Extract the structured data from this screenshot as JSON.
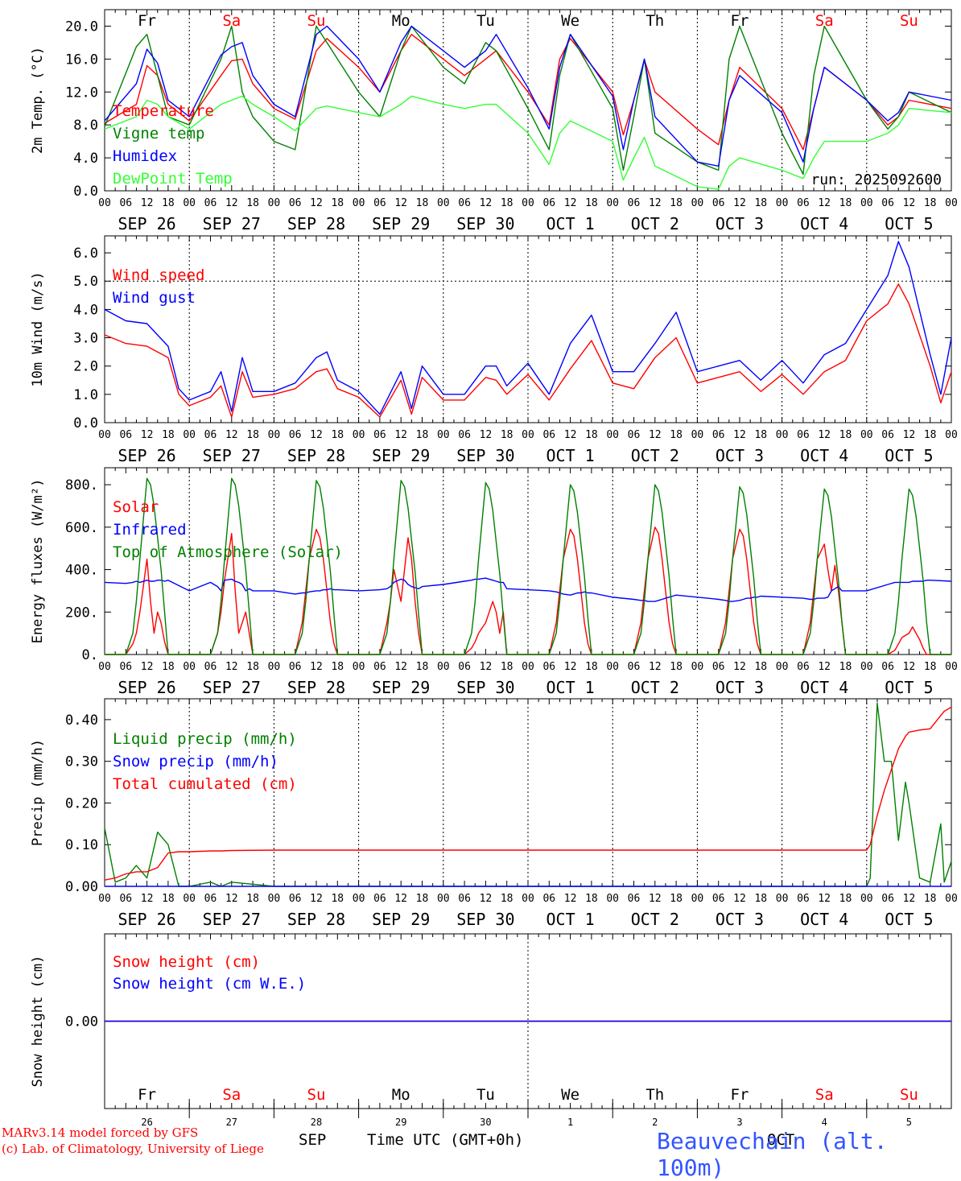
{
  "footer": {
    "model_line": "MARv3.14 model forced by GFS",
    "credit_line": "(c) Lab. of Climatology, University of Liege",
    "xlabel": "Time UTC (GMT+0h)",
    "month_left": "SEP",
    "month_right": "OCT",
    "station": "Beauvechain (alt. 100m)"
  },
  "axis": {
    "hour_labels": [
      "00",
      "06",
      "12",
      "18"
    ],
    "final_hour_label": "00",
    "dates": [
      "SEP 26",
      "SEP 27",
      "SEP 28",
      "SEP 29",
      "SEP 30",
      "OCT  1",
      "OCT  2",
      "OCT  3",
      "OCT  4",
      "OCT  5"
    ],
    "weekdays": [
      "Fr",
      "Sa",
      "Su",
      "Mo",
      "Tu",
      "We",
      "Th",
      "Fr",
      "Sa",
      "Su"
    ],
    "weekend": [
      false,
      true,
      true,
      false,
      false,
      false,
      false,
      false,
      true,
      true
    ],
    "day_numbers": [
      "26",
      "27",
      "28",
      "29",
      "30",
      "1",
      "2",
      "3",
      "4",
      "5"
    ],
    "start_hour_offset": 0,
    "total_hours": 240
  },
  "colors": {
    "red": "#ff0000",
    "dark_green": "#008000",
    "blue": "#0000ff",
    "light_green": "#33ff33",
    "station_blue": "#3355ff"
  },
  "chart_data": [
    {
      "type": "line",
      "ylabel": "2m Temp. (°C)",
      "yticks": [
        "0.0",
        "4.0",
        "8.0",
        "12.0",
        "16.0",
        "20.0"
      ],
      "ylim": [
        0,
        22
      ],
      "run_label": "run: 2025092600",
      "hline": null,
      "x_hours": [
        0,
        9,
        12,
        15,
        18,
        24,
        33,
        36,
        39,
        42,
        48,
        54,
        60,
        63,
        72,
        78,
        84,
        87,
        96,
        102,
        108,
        111,
        120,
        126,
        129,
        132,
        144,
        147,
        150,
        153,
        156,
        168,
        174,
        177,
        180,
        192,
        198,
        201,
        204,
        216,
        222,
        225,
        228,
        240
      ],
      "series": [
        {
          "name": "Temperature",
          "color": "#ff0000",
          "values": [
            8.2,
            10.5,
            15.2,
            14.0,
            10.5,
            8.5,
            14.0,
            15.8,
            16.0,
            13.0,
            10.0,
            8.7,
            17.0,
            18.5,
            15.0,
            12.0,
            17.0,
            19.0,
            16.0,
            14.0,
            16.0,
            17.0,
            12.0,
            8.0,
            16.0,
            18.5,
            12.0,
            6.8,
            11.0,
            15.9,
            12.0,
            7.5,
            5.6,
            11.0,
            15.0,
            10.0,
            5.0,
            10.0,
            15.0,
            11.0,
            8.0,
            9.0,
            11.0,
            10.0
          ]
        },
        {
          "name": "Vigne temp",
          "color": "#008000",
          "values": [
            7.8,
            17.5,
            19.0,
            14.0,
            9.0,
            8.0,
            16.0,
            20.0,
            12.0,
            9.0,
            6.0,
            5.0,
            20.0,
            18.0,
            12.0,
            9.0,
            17.0,
            20.0,
            15.0,
            13.0,
            18.0,
            17.0,
            10.0,
            5.0,
            14.0,
            19.0,
            10.0,
            2.5,
            9.0,
            16.0,
            7.0,
            3.5,
            2.5,
            16.0,
            20.0,
            7.0,
            2.0,
            14.0,
            20.0,
            11.0,
            7.5,
            9.0,
            12.0,
            9.5
          ]
        },
        {
          "name": "Humidex",
          "color": "#0000ff",
          "values": [
            8.5,
            13.0,
            17.2,
            15.5,
            11.0,
            9.0,
            16.5,
            17.5,
            18.0,
            14.0,
            10.5,
            9.0,
            19.0,
            20.0,
            16.0,
            12.0,
            18.0,
            20.0,
            17.0,
            15.0,
            17.0,
            19.0,
            12.5,
            7.5,
            15.0,
            19.0,
            11.5,
            5.0,
            11.0,
            16.0,
            9.0,
            3.5,
            3.0,
            11.0,
            14.0,
            9.5,
            3.5,
            10.0,
            15.0,
            11.0,
            8.5,
            9.5,
            12.0,
            11.0
          ]
        },
        {
          "name": "DewPoint Temp",
          "color": "#33ff33",
          "values": [
            7.5,
            9.0,
            11.0,
            10.5,
            9.0,
            7.5,
            10.5,
            11.0,
            11.5,
            10.5,
            9.0,
            7.3,
            10.0,
            10.3,
            9.5,
            9.0,
            10.5,
            11.5,
            10.5,
            10.0,
            10.5,
            10.5,
            7.0,
            3.2,
            7.0,
            8.5,
            6.0,
            1.3,
            4.0,
            6.5,
            3.0,
            0.5,
            0.2,
            3.0,
            4.0,
            2.5,
            1.5,
            4.0,
            6.0,
            6.0,
            7.0,
            8.0,
            10.0,
            9.5
          ]
        }
      ]
    },
    {
      "type": "line",
      "ylabel": "10m Wind (m/s)",
      "yticks": [
        "0.0",
        "1.0",
        "2.0",
        "3.0",
        "4.0",
        "5.0",
        "6.0"
      ],
      "ylim": [
        0,
        6.6
      ],
      "hline": 5.0,
      "x_hours": [
        0,
        6,
        12,
        18,
        21,
        24,
        30,
        33,
        36,
        39,
        42,
        48,
        54,
        60,
        63,
        66,
        72,
        78,
        84,
        87,
        90,
        96,
        102,
        108,
        111,
        114,
        120,
        126,
        132,
        138,
        144,
        150,
        156,
        162,
        168,
        174,
        180,
        186,
        192,
        198,
        204,
        210,
        216,
        222,
        225,
        228,
        234,
        237,
        240
      ],
      "series": [
        {
          "name": "Wind speed",
          "color": "#ff0000",
          "values": [
            3.1,
            2.8,
            2.7,
            2.3,
            1.0,
            0.6,
            0.9,
            1.3,
            0.2,
            1.8,
            0.9,
            1.0,
            1.2,
            1.8,
            1.9,
            1.2,
            0.9,
            0.2,
            1.5,
            0.3,
            1.6,
            0.8,
            0.8,
            1.6,
            1.5,
            1.0,
            1.7,
            0.8,
            1.9,
            2.9,
            1.4,
            1.2,
            2.3,
            3.0,
            1.4,
            1.6,
            1.8,
            1.1,
            1.7,
            1.0,
            1.8,
            2.2,
            3.6,
            4.2,
            4.9,
            4.2,
            2.0,
            0.7,
            1.8
          ]
        },
        {
          "name": "Wind gust",
          "color": "#0000ff",
          "values": [
            4.0,
            3.6,
            3.5,
            2.7,
            1.2,
            0.8,
            1.1,
            1.8,
            0.4,
            2.3,
            1.1,
            1.1,
            1.4,
            2.3,
            2.5,
            1.5,
            1.1,
            0.3,
            1.8,
            0.5,
            2.0,
            1.0,
            1.0,
            2.0,
            2.0,
            1.3,
            2.1,
            1.0,
            2.8,
            3.8,
            1.8,
            1.8,
            2.8,
            3.9,
            1.8,
            2.0,
            2.2,
            1.5,
            2.2,
            1.4,
            2.4,
            2.8,
            4.0,
            5.2,
            6.4,
            5.5,
            2.4,
            1.0,
            3.0
          ]
        }
      ]
    },
    {
      "type": "line",
      "ylabel": "Energy fluxes (W/m²)",
      "yticks": [
        "0.",
        "200.",
        "400.",
        "600.",
        "800."
      ],
      "ylim": [
        0,
        880
      ],
      "hline": null,
      "x_hours": [
        0,
        6,
        8,
        9,
        10,
        12,
        13,
        14,
        15,
        16,
        17,
        18,
        24,
        30,
        32,
        33,
        34,
        36,
        37,
        38,
        39,
        40,
        41,
        42,
        48,
        54,
        56,
        57,
        58,
        60,
        61,
        62,
        63,
        64,
        65,
        66,
        72,
        78,
        80,
        81,
        82,
        84,
        85,
        86,
        87,
        88,
        89,
        90,
        96,
        102,
        104,
        105,
        106,
        108,
        109,
        110,
        111,
        112,
        113,
        114,
        120,
        126,
        128,
        129,
        130,
        132,
        133,
        134,
        135,
        136,
        137,
        138,
        144,
        150,
        152,
        153,
        154,
        156,
        157,
        158,
        159,
        160,
        161,
        162,
        168,
        174,
        176,
        177,
        178,
        180,
        181,
        182,
        183,
        184,
        185,
        186,
        192,
        198,
        200,
        201,
        202,
        204,
        205,
        206,
        207,
        208,
        209,
        210,
        216,
        222,
        224,
        225,
        226,
        228,
        229,
        230,
        231,
        232,
        233,
        234,
        240
      ],
      "series": [
        {
          "name": "Solar",
          "color": "#ff0000",
          "values": [
            0,
            0,
            50,
            100,
            200,
            450,
            250,
            100,
            200,
            150,
            60,
            0,
            0,
            0,
            100,
            200,
            350,
            570,
            300,
            100,
            150,
            200,
            100,
            0,
            0,
            0,
            150,
            300,
            450,
            590,
            550,
            450,
            300,
            150,
            50,
            0,
            0,
            0,
            150,
            250,
            400,
            250,
            400,
            550,
            450,
            250,
            100,
            0,
            0,
            0,
            30,
            60,
            100,
            150,
            200,
            250,
            200,
            100,
            200,
            0,
            0,
            0,
            150,
            300,
            450,
            590,
            560,
            450,
            300,
            150,
            50,
            0,
            0,
            0,
            150,
            300,
            450,
            600,
            570,
            450,
            300,
            150,
            50,
            0,
            0,
            0,
            150,
            300,
            450,
            590,
            560,
            450,
            300,
            150,
            50,
            0,
            0,
            0,
            150,
            300,
            450,
            520,
            400,
            300,
            420,
            300,
            150,
            0,
            0,
            0,
            20,
            50,
            80,
            100,
            130,
            100,
            70,
            30,
            0,
            0,
            0
          ]
        },
        {
          "name": "Infrared",
          "color": "#0000ff",
          "values": [
            340,
            335,
            340,
            345,
            340,
            350,
            345,
            345,
            350,
            350,
            345,
            350,
            300,
            340,
            320,
            300,
            350,
            355,
            345,
            340,
            330,
            300,
            310,
            300,
            300,
            285,
            290,
            290,
            295,
            300,
            300,
            305,
            305,
            310,
            305,
            305,
            300,
            305,
            310,
            320,
            340,
            355,
            350,
            330,
            320,
            315,
            310,
            320,
            330,
            345,
            350,
            355,
            355,
            360,
            355,
            350,
            345,
            340,
            340,
            310,
            305,
            300,
            295,
            290,
            285,
            280,
            285,
            290,
            290,
            295,
            290,
            290,
            270,
            260,
            255,
            255,
            250,
            250,
            255,
            260,
            265,
            270,
            275,
            280,
            270,
            260,
            255,
            250,
            250,
            255,
            260,
            265,
            265,
            270,
            270,
            275,
            270,
            265,
            260,
            260,
            265,
            265,
            270,
            300,
            310,
            320,
            300,
            300,
            300,
            330,
            340,
            340,
            340,
            340,
            345,
            345,
            345,
            345,
            350,
            350,
            345
          ]
        },
        {
          "name": "Top of Atmosphere (Solar)",
          "color": "#008000",
          "values": [
            0,
            0,
            100,
            250,
            450,
            830,
            800,
            700,
            550,
            400,
            200,
            0,
            0,
            0,
            100,
            250,
            450,
            830,
            800,
            700,
            550,
            400,
            200,
            0,
            0,
            0,
            100,
            250,
            450,
            820,
            790,
            690,
            540,
            390,
            190,
            0,
            0,
            0,
            100,
            250,
            450,
            820,
            790,
            690,
            540,
            390,
            190,
            0,
            0,
            0,
            100,
            250,
            450,
            810,
            780,
            680,
            530,
            380,
            180,
            0,
            0,
            0,
            100,
            250,
            450,
            800,
            770,
            670,
            520,
            370,
            170,
            0,
            0,
            0,
            100,
            250,
            450,
            800,
            770,
            670,
            520,
            370,
            170,
            0,
            0,
            0,
            100,
            250,
            450,
            790,
            760,
            660,
            510,
            360,
            160,
            0,
            0,
            0,
            100,
            250,
            450,
            780,
            750,
            650,
            500,
            350,
            150,
            0,
            0,
            0,
            100,
            250,
            450,
            780,
            750,
            650,
            500,
            350,
            150,
            0,
            0
          ]
        }
      ]
    },
    {
      "type": "line",
      "ylabel": "Precip (mm/h)",
      "yticks": [
        "0.00",
        "0.10",
        "0.20",
        "0.30",
        "0.40"
      ],
      "ylim": [
        0,
        0.45
      ],
      "hline": null,
      "x_hours": [
        0,
        3,
        6,
        9,
        12,
        15,
        18,
        21,
        24,
        30,
        33,
        36,
        48,
        72,
        96,
        120,
        144,
        168,
        192,
        216,
        217,
        219,
        221,
        223,
        225,
        227,
        228,
        231,
        234,
        237,
        238,
        240
      ],
      "series": [
        {
          "name": "Liquid precip (mm/h)",
          "color": "#008000",
          "values": [
            0.14,
            0.01,
            0.02,
            0.05,
            0.02,
            0.13,
            0.1,
            0,
            0,
            0.01,
            0,
            0.01,
            0,
            0,
            0,
            0,
            0,
            0,
            0,
            0,
            0.02,
            0.44,
            0.3,
            0.3,
            0.11,
            0.25,
            0.2,
            0.02,
            0.01,
            0.15,
            0.01,
            0.06
          ]
        },
        {
          "name": "Snow precip (mm/h)",
          "color": "#0000ff",
          "values": [
            0,
            0,
            0,
            0,
            0,
            0,
            0,
            0,
            0,
            0,
            0,
            0,
            0,
            0,
            0,
            0,
            0,
            0,
            0,
            0,
            0,
            0,
            0,
            0,
            0,
            0,
            0,
            0,
            0,
            0,
            0,
            0
          ]
        },
        {
          "name": "Total cumulated (cm)",
          "color": "#ff0000",
          "values": [
            0.015,
            0.02,
            0.03,
            0.035,
            0.035,
            0.045,
            0.08,
            0.083,
            0.083,
            0.085,
            0.085,
            0.086,
            0.087,
            0.087,
            0.087,
            0.087,
            0.087,
            0.087,
            0.087,
            0.087,
            0.1,
            0.17,
            0.23,
            0.28,
            0.33,
            0.36,
            0.37,
            0.375,
            0.378,
            0.41,
            0.42,
            0.43
          ]
        }
      ]
    },
    {
      "type": "line",
      "ylabel": "Snow height (cm)",
      "yticks": [
        "0.00"
      ],
      "ylim": [
        -1,
        1
      ],
      "hline": null,
      "x_hours": [
        0,
        240
      ],
      "series": [
        {
          "name": "Snow height (cm)",
          "color": "#ff0000",
          "values": [
            0,
            0
          ]
        },
        {
          "name": "Snow height (cm W.E.)",
          "color": "#0000ff",
          "values": [
            0,
            0
          ]
        }
      ]
    }
  ]
}
